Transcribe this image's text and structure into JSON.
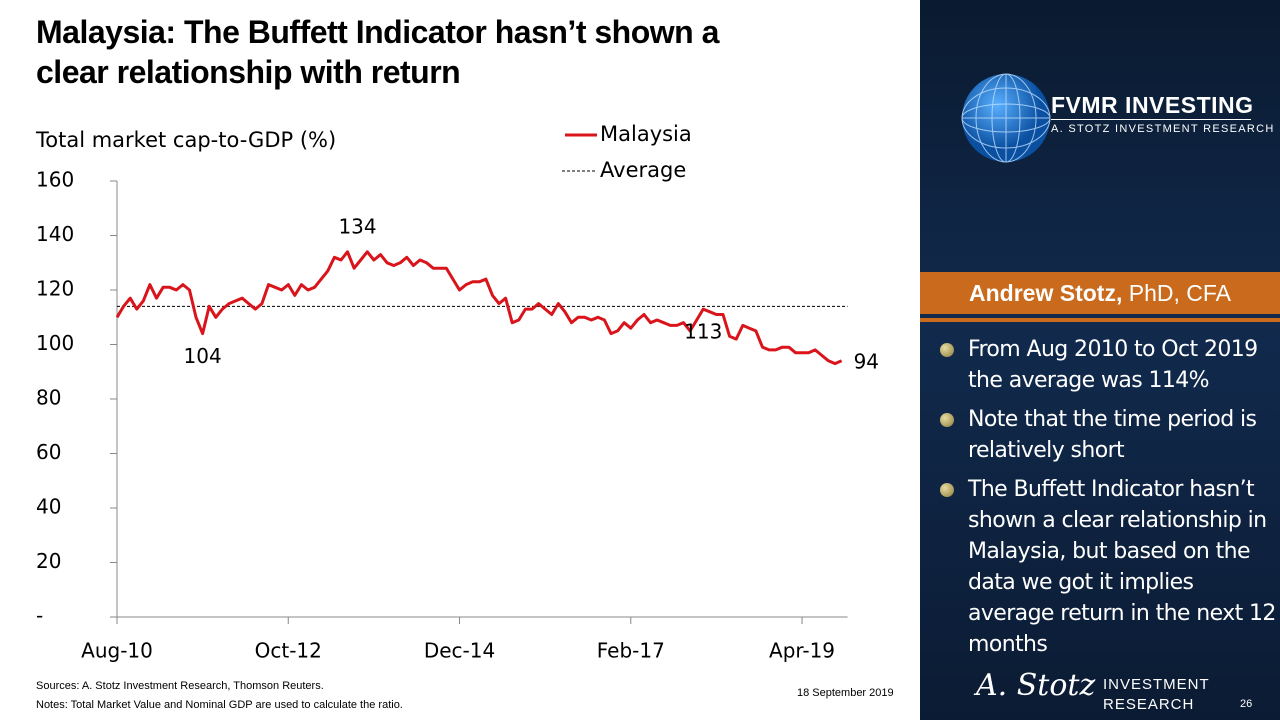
{
  "slide": {
    "title_line1": "Malaysia: The Buffett Indicator hasn’t shown a",
    "title_line2": "clear relationship with return",
    "brand": "FVMR INVESTING",
    "brand_sub": "A. STOTZ INVESTMENT RESEARCH",
    "author_name": "Andrew Stotz,",
    "author_credentials": "PhD, CFA",
    "bullets": [
      "From Aug 2010 to Oct 2019 the average was 114%",
      "Note that the time period is relatively short",
      "The Buffett Indicator hasn’t shown a clear relationship in Malaysia, but based on the data we got it implies average return in the next 12 months"
    ],
    "sources": "Sources: A. Stotz Investment Research, Thomson Reuters.",
    "notes": "Notes: Total Market Value and Nominal GDP are used to calculate the ratio.",
    "date": "18 September 2019",
    "page": "26",
    "footer_logo_script": "A. Stotz",
    "footer_logo_line1": "INVESTMENT",
    "footer_logo_line2": "RESEARCH"
  },
  "chart_data": {
    "type": "line",
    "y_label": "Total market cap-to-GDP (%)",
    "categories": [
      "Aug-10",
      null,
      null,
      null,
      null,
      null,
      null,
      null,
      null,
      null,
      null,
      null,
      null,
      null,
      null,
      null,
      null,
      null,
      null,
      null,
      null,
      null,
      null,
      null,
      null,
      null,
      "Oct-12",
      null,
      null,
      null,
      null,
      null,
      null,
      null,
      null,
      null,
      null,
      null,
      null,
      null,
      null,
      null,
      null,
      null,
      null,
      null,
      null,
      null,
      null,
      null,
      null,
      null,
      "Dec-14",
      null,
      null,
      null,
      null,
      null,
      null,
      null,
      null,
      null,
      null,
      null,
      null,
      null,
      null,
      null,
      null,
      null,
      null,
      null,
      null,
      null,
      null,
      null,
      null,
      null,
      "Feb-17",
      null,
      null,
      null,
      null,
      null,
      null,
      null,
      null,
      null,
      null,
      null,
      null,
      null,
      null,
      null,
      null,
      null,
      null,
      null,
      null,
      null,
      null,
      null,
      null,
      null,
      "Apr-19",
      null,
      null,
      null,
      null,
      null,
      null
    ],
    "series": [
      {
        "name": "Malaysia",
        "color": "#d9141b",
        "values": [
          110,
          114,
          117,
          113,
          116,
          122,
          117,
          121,
          121,
          120,
          122,
          120,
          110,
          104,
          114,
          110,
          113,
          115,
          116,
          117,
          115,
          113,
          115,
          122,
          121,
          120,
          122,
          118,
          122,
          120,
          121,
          124,
          127,
          132,
          131,
          134,
          128,
          131,
          134,
          131,
          133,
          130,
          129,
          130,
          132,
          129,
          131,
          130,
          128,
          128,
          128,
          124,
          120,
          122,
          123,
          123,
          124,
          118,
          115,
          117,
          108,
          109,
          113,
          113,
          115,
          113,
          111,
          115,
          112,
          108,
          110,
          110,
          109,
          110,
          109,
          104,
          105,
          108,
          106,
          109,
          111,
          108,
          109,
          108,
          107,
          107,
          108,
          105,
          109,
          113,
          112,
          111,
          111,
          103,
          102,
          107,
          106,
          105,
          99,
          98,
          98,
          99,
          99,
          97,
          97,
          97,
          98,
          96,
          94,
          93,
          94
        ]
      }
    ],
    "average": {
      "name": "Average",
      "value": 114,
      "color": "#000000"
    },
    "labeled_points": [
      13,
      35,
      89,
      110
    ],
    "ylim": [
      0,
      160
    ],
    "yticks": [
      {
        "value": 0,
        "label": "-"
      },
      20,
      40,
      60,
      80,
      100,
      120,
      140,
      160
    ]
  }
}
